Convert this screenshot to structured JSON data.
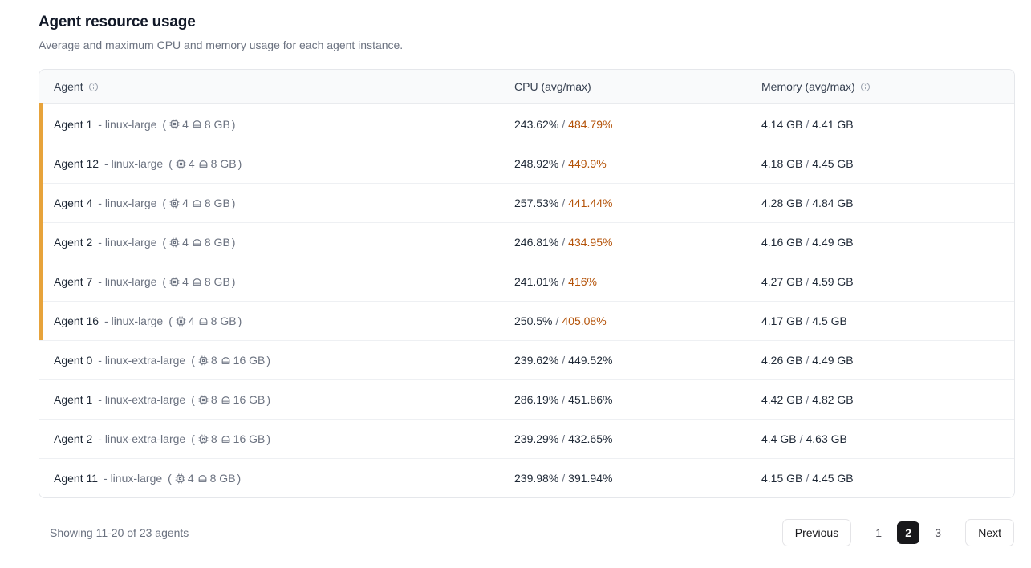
{
  "page": {
    "title": "Agent resource usage",
    "subtitle": "Average and maximum CPU and memory usage for each agent instance."
  },
  "table": {
    "columns": {
      "agent": {
        "label": "Agent",
        "info_icon": true
      },
      "cpu": {
        "label": "CPU (avg/max)",
        "info_icon": false
      },
      "memory": {
        "label": "Memory (avg/max)",
        "info_icon": true
      }
    },
    "specs_open": "(",
    "specs_close": ")",
    "value_separator": "/",
    "rows": [
      {
        "label": "Agent 1",
        "instance": "- linux-large",
        "cpu_count": "4",
        "ram": "8 GB",
        "cpu_avg": "243.62%",
        "cpu_max": "484.79%",
        "cpu_max_warning": true,
        "mem_avg": "4.14 GB",
        "mem_max": "4.41 GB",
        "flagged": true
      },
      {
        "label": "Agent 12",
        "instance": "- linux-large",
        "cpu_count": "4",
        "ram": "8 GB",
        "cpu_avg": "248.92%",
        "cpu_max": "449.9%",
        "cpu_max_warning": true,
        "mem_avg": "4.18 GB",
        "mem_max": "4.45 GB",
        "flagged": true
      },
      {
        "label": "Agent 4",
        "instance": "- linux-large",
        "cpu_count": "4",
        "ram": "8 GB",
        "cpu_avg": "257.53%",
        "cpu_max": "441.44%",
        "cpu_max_warning": true,
        "mem_avg": "4.28 GB",
        "mem_max": "4.84 GB",
        "flagged": true
      },
      {
        "label": "Agent 2",
        "instance": "- linux-large",
        "cpu_count": "4",
        "ram": "8 GB",
        "cpu_avg": "246.81%",
        "cpu_max": "434.95%",
        "cpu_max_warning": true,
        "mem_avg": "4.16 GB",
        "mem_max": "4.49 GB",
        "flagged": true
      },
      {
        "label": "Agent 7",
        "instance": "- linux-large",
        "cpu_count": "4",
        "ram": "8 GB",
        "cpu_avg": "241.01%",
        "cpu_max": "416%",
        "cpu_max_warning": true,
        "mem_avg": "4.27 GB",
        "mem_max": "4.59 GB",
        "flagged": true
      },
      {
        "label": "Agent 16",
        "instance": "- linux-large",
        "cpu_count": "4",
        "ram": "8 GB",
        "cpu_avg": "250.5%",
        "cpu_max": "405.08%",
        "cpu_max_warning": true,
        "mem_avg": "4.17 GB",
        "mem_max": "4.5 GB",
        "flagged": true
      },
      {
        "label": "Agent 0",
        "instance": "- linux-extra-large",
        "cpu_count": "8",
        "ram": "16 GB",
        "cpu_avg": "239.62%",
        "cpu_max": "449.52%",
        "cpu_max_warning": false,
        "mem_avg": "4.26 GB",
        "mem_max": "4.49 GB",
        "flagged": false
      },
      {
        "label": "Agent 1",
        "instance": "- linux-extra-large",
        "cpu_count": "8",
        "ram": "16 GB",
        "cpu_avg": "286.19%",
        "cpu_max": "451.86%",
        "cpu_max_warning": false,
        "mem_avg": "4.42 GB",
        "mem_max": "4.82 GB",
        "flagged": false
      },
      {
        "label": "Agent 2",
        "instance": "- linux-extra-large",
        "cpu_count": "8",
        "ram": "16 GB",
        "cpu_avg": "239.29%",
        "cpu_max": "432.65%",
        "cpu_max_warning": false,
        "mem_avg": "4.4 GB",
        "mem_max": "4.63 GB",
        "flagged": false
      },
      {
        "label": "Agent 11",
        "instance": "- linux-large",
        "cpu_count": "4",
        "ram": "8 GB",
        "cpu_avg": "239.98%",
        "cpu_max": "391.94%",
        "cpu_max_warning": false,
        "mem_avg": "4.15 GB",
        "mem_max": "4.45 GB",
        "flagged": false
      }
    ]
  },
  "footer": {
    "summary": "Showing 11-20 of 23 agents",
    "pagination": {
      "previous_label": "Previous",
      "pages": [
        "1",
        "2",
        "3"
      ],
      "active_page": "2",
      "next_label": "Next"
    }
  },
  "colors": {
    "flag_stripe": "#E7A33B",
    "cpu_max_warning_text": "#B45309",
    "active_page_bg": "#18181B",
    "header_row_bg": "#F9FAFB"
  }
}
